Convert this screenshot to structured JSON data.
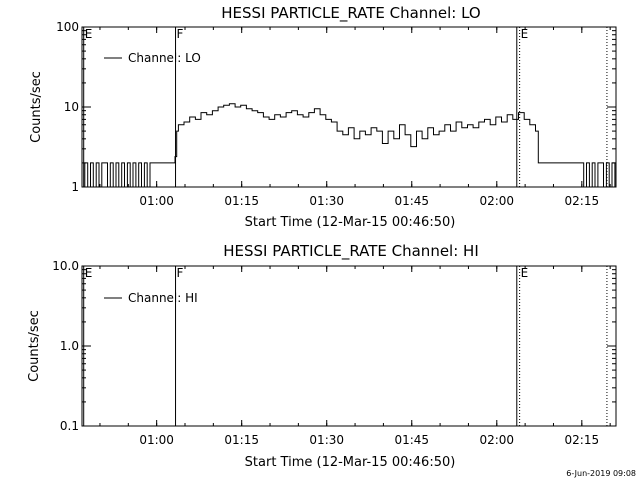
{
  "footer_timestamp": "6-Jun-2019 09:08",
  "chart_data": [
    {
      "type": "line",
      "title": "HESSI PARTICLE_RATE Channel: LO",
      "xlabel": "Start Time (12-Mar-15 00:46:50)",
      "ylabel": "Counts/sec",
      "y_scale": "log",
      "ylim": [
        1,
        100
      ],
      "y_ticks": [
        1,
        10,
        100
      ],
      "y_tick_labels": [
        "1",
        "10",
        "100"
      ],
      "x_unit": "minutes after 00:46:50",
      "xlim": [
        0,
        94.2
      ],
      "x_ticks": [
        13.17,
        28.17,
        43.17,
        58.17,
        73.17,
        88.17
      ],
      "x_tick_labels": [
        "01:00",
        "01:15",
        "01:30",
        "01:45",
        "02:00",
        "02:15"
      ],
      "legend": {
        "entries": [
          "Channel: LO"
        ],
        "position": "top-left"
      },
      "markers": [
        {
          "label": "E",
          "x": 0.3,
          "style": "solid"
        },
        {
          "label": "F",
          "x": 16.5,
          "style": "solid"
        },
        {
          "label": "",
          "x": 76.7,
          "style": "solid"
        },
        {
          "label": "E",
          "x": 77.2,
          "style": "dotted"
        },
        {
          "label": "",
          "x": 92.6,
          "style": "dotted"
        }
      ],
      "series": [
        {
          "x": [
            0,
            0.5,
            1,
            1.5,
            2,
            2.5,
            3,
            3.5,
            4,
            4.5,
            5,
            5.5,
            6,
            6.5,
            7,
            7.5,
            8,
            8.5,
            9,
            9.5,
            10,
            10.5,
            11,
            11.5,
            12,
            13,
            14,
            15,
            16,
            16.4,
            16.7,
            17,
            18,
            19,
            20,
            21,
            22,
            23,
            24,
            25,
            26,
            27,
            28,
            29,
            30,
            31,
            32,
            33,
            34,
            35,
            36,
            37,
            38,
            39,
            40,
            41,
            42,
            43,
            44,
            45,
            46,
            47,
            48,
            49,
            50,
            51,
            52,
            53,
            54,
            55,
            56,
            57,
            58,
            59,
            60,
            61,
            62,
            63,
            64,
            65,
            66,
            67,
            68,
            69,
            70,
            71,
            72,
            73,
            74,
            75,
            76,
            77,
            78,
            79,
            80,
            80.5,
            81,
            81.5,
            82,
            83,
            84,
            85,
            86,
            87,
            88,
            88.5,
            89,
            89.5,
            90,
            90.5,
            91,
            91.5,
            92,
            92.5,
            93,
            93.5,
            94
          ],
          "y": [
            1.0,
            2.0,
            1.0,
            2.0,
            1.0,
            2.0,
            1.0,
            2.0,
            2.0,
            1.0,
            2.0,
            1.0,
            2.0,
            1.0,
            2.0,
            1.0,
            2.0,
            1.0,
            2.0,
            1.0,
            2.0,
            1.0,
            2.0,
            1.0,
            2.0,
            2.0,
            2.0,
            2.0,
            2.0,
            2.4,
            5.0,
            6.0,
            6.5,
            7.5,
            7.0,
            8.5,
            8.0,
            9.0,
            10.0,
            10.5,
            11.0,
            10.0,
            10.5,
            9.5,
            9.0,
            8.5,
            7.5,
            7.0,
            8.0,
            7.5,
            8.5,
            9.0,
            8.0,
            7.5,
            8.5,
            9.5,
            8.0,
            7.0,
            6.5,
            5.0,
            4.5,
            5.5,
            4.0,
            5.0,
            4.5,
            5.5,
            5.0,
            3.5,
            5.0,
            4.0,
            6.0,
            4.5,
            3.2,
            5.0,
            4.0,
            5.5,
            4.5,
            5.0,
            6.0,
            5.0,
            6.5,
            5.5,
            6.0,
            5.5,
            6.5,
            7.0,
            6.0,
            7.5,
            6.5,
            8.0,
            7.0,
            8.5,
            7.0,
            6.0,
            5.0,
            2.0,
            2.0,
            2.0,
            2.0,
            2.0,
            2.0,
            2.0,
            2.0,
            2.0,
            2.0,
            1.0,
            2.0,
            1.0,
            2.0,
            1.0,
            2.0,
            2.0,
            1.0,
            2.0,
            1.0,
            2.0,
            1.0
          ]
        }
      ]
    },
    {
      "type": "line",
      "title": "HESSI PARTICLE_RATE Channel: HI",
      "xlabel": "Start Time (12-Mar-15 00:46:50)",
      "ylabel": "Counts/sec",
      "y_scale": "log",
      "ylim": [
        0.1,
        10
      ],
      "y_ticks": [
        0.1,
        1,
        10
      ],
      "y_tick_labels": [
        "0.1",
        "1.0",
        "10.0"
      ],
      "x_unit": "minutes after 00:46:50",
      "xlim": [
        0,
        94.2
      ],
      "x_ticks": [
        13.17,
        28.17,
        43.17,
        58.17,
        73.17,
        88.17
      ],
      "x_tick_labels": [
        "01:00",
        "01:15",
        "01:30",
        "01:45",
        "02:00",
        "02:15"
      ],
      "legend": {
        "entries": [
          "Channel: HI"
        ],
        "position": "top-left"
      },
      "markers": [
        {
          "label": "E",
          "x": 0.3,
          "style": "solid"
        },
        {
          "label": "F",
          "x": 16.5,
          "style": "solid"
        },
        {
          "label": "",
          "x": 76.7,
          "style": "solid"
        },
        {
          "label": "E",
          "x": 77.2,
          "style": "dotted"
        },
        {
          "label": "",
          "x": 92.6,
          "style": "dotted"
        }
      ],
      "series": [
        {
          "x": [],
          "y": []
        }
      ]
    }
  ]
}
